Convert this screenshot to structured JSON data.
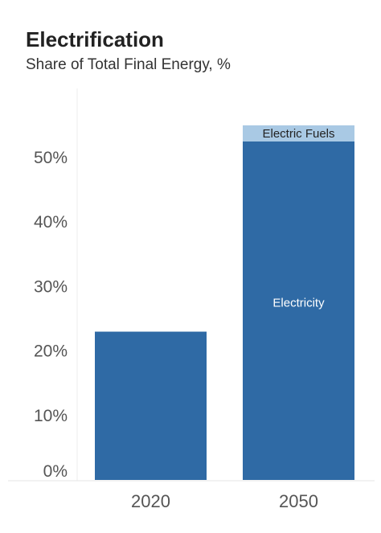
{
  "chart_data": {
    "type": "bar",
    "stacked": true,
    "title": "Electrification",
    "subtitle": "Share of Total Final Energy, %",
    "categories": [
      "2020",
      "2050"
    ],
    "series": [
      {
        "name": "Electricity",
        "values": [
          23,
          52.5
        ],
        "color": "#2f6aa5",
        "label_color": "#ffffff"
      },
      {
        "name": "Electric Fuels",
        "values": [
          0,
          2.5
        ],
        "color": "#a9c9e4",
        "label_color": "#222222"
      }
    ],
    "ylim": [
      0,
      55
    ],
    "yticks": [
      0,
      10,
      20,
      30,
      40,
      50
    ],
    "ytick_labels": [
      "0%",
      "10%",
      "20%",
      "30%",
      "40%",
      "50%"
    ],
    "xlabel": "",
    "ylabel": "",
    "grid": false
  }
}
